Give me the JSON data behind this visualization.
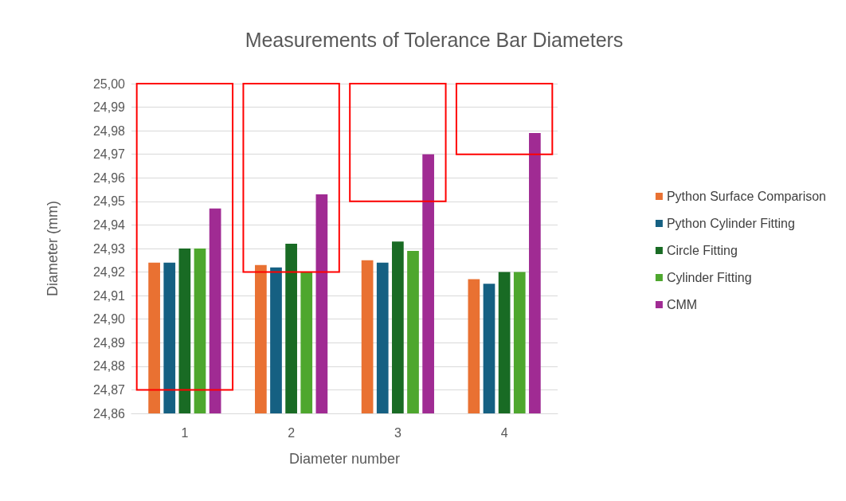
{
  "chart_data": {
    "type": "bar",
    "title": "Measurements of Tolerance Bar Diameters",
    "xlabel": "Diameter number",
    "ylabel": "Diameter (mm)",
    "categories": [
      "1",
      "2",
      "3",
      "4"
    ],
    "series": [
      {
        "name": "Python Surface Comparison",
        "color": "#e97132",
        "values": [
          24.924,
          24.923,
          24.925,
          24.917
        ]
      },
      {
        "name": "Python Cylinder Fitting",
        "color": "#156082",
        "values": [
          24.924,
          24.922,
          24.924,
          24.915
        ]
      },
      {
        "name": "Circle Fitting",
        "color": "#196b24",
        "values": [
          24.93,
          24.932,
          24.933,
          24.92
        ]
      },
      {
        "name": "Cylinder Fitting",
        "color": "#4ea72e",
        "values": [
          24.93,
          24.92,
          24.929,
          24.92
        ]
      },
      {
        "name": "CMM",
        "color": "#a02b93",
        "values": [
          24.947,
          24.953,
          24.97,
          24.979
        ]
      },
      {
        "type": "bar",
        "color": "#ff0000",
        "base": [
          24.87,
          24.92,
          24.95,
          24.97
        ],
        "values": [
          0.13,
          0.08,
          0.05,
          0.03
        ]
      }
    ],
    "ylim": [
      24.86,
      25.0
    ],
    "yticks": [
      {
        "value": 24.86,
        "label": "24,86"
      },
      {
        "value": 24.87,
        "label": "24,87"
      },
      {
        "value": 24.88,
        "label": "24,88"
      },
      {
        "value": 24.89,
        "label": "24,89"
      },
      {
        "value": 24.9,
        "label": "24,90"
      },
      {
        "value": 24.91,
        "label": "24,91"
      },
      {
        "value": 24.92,
        "label": "24,92"
      },
      {
        "value": 24.93,
        "label": "24,93"
      },
      {
        "value": 24.94,
        "label": "24,94"
      },
      {
        "value": 24.95,
        "label": "24,95"
      },
      {
        "value": 24.96,
        "label": "24,96"
      },
      {
        "value": 24.97,
        "label": "24,97"
      },
      {
        "value": 24.98,
        "label": "24,98"
      },
      {
        "value": 24.99,
        "label": "24,99"
      },
      {
        "value": 25.0,
        "label": "25,00"
      }
    ],
    "grid": "y",
    "legend": "right"
  }
}
